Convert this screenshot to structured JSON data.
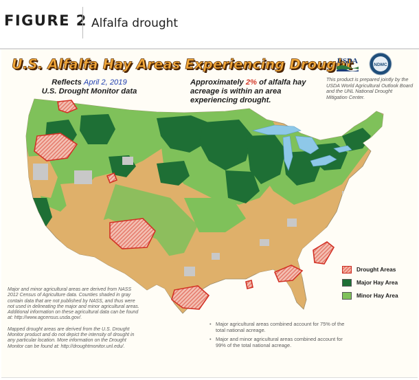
{
  "figure": {
    "label": "FIGURE 2",
    "title": "Alfalfa drought"
  },
  "map": {
    "title": "U.S. Alfalfa Hay Areas Experiencing Drought",
    "reflects_prefix": "Reflects",
    "reflects_date": "April 2, 2019",
    "source_line": "U.S. Drought Monitor data",
    "approx_prefix": "Approximately",
    "approx_pct": "2%",
    "approx_rest": "of alfalfa hay acreage is within an area experiencing drought.",
    "logo_usda": "USDA",
    "logo_ndmc": "NDMC",
    "credit": "This product is prepared jointly by the USDA World Agricultural Outlook Board and the UNL National Drought Mitigation Center."
  },
  "legend": {
    "items": [
      {
        "label": "Drought Areas",
        "color": "#e8766a"
      },
      {
        "label": "Major Hay Area",
        "color": "#1e6f35"
      },
      {
        "label": "Minor Hay Area",
        "color": "#7fc15a"
      }
    ]
  },
  "colors": {
    "non_hay_area": "#dfb06a",
    "no_data_gray": "#c8c8c8",
    "water": "#8ec8e8",
    "drought_outline": "#d23226"
  },
  "notes": {
    "left_1": "Major and minor agricultural areas are derived from NASS 2012 Census of Agriculture data. Counties shaded in gray contain data that are not published by NASS, and thus were not used in delineating the major and minor agricultural areas. Additional information on these agricultural data can be found at: http://www.agcensus.usda.gov/.",
    "left_2": "Mapped drought areas are derived from the U.S. Drought Monitor product and do not depict the intensity of drought in any particular location. More information on the Drought Monitor can be found at: http://droughtmonitor.unl.edu/.",
    "right_1": "Major agricultural areas combined account for 75% of the total national acreage.",
    "right_2": "Major and minor agricultural areas combined account for 99% of the total national acreage."
  }
}
